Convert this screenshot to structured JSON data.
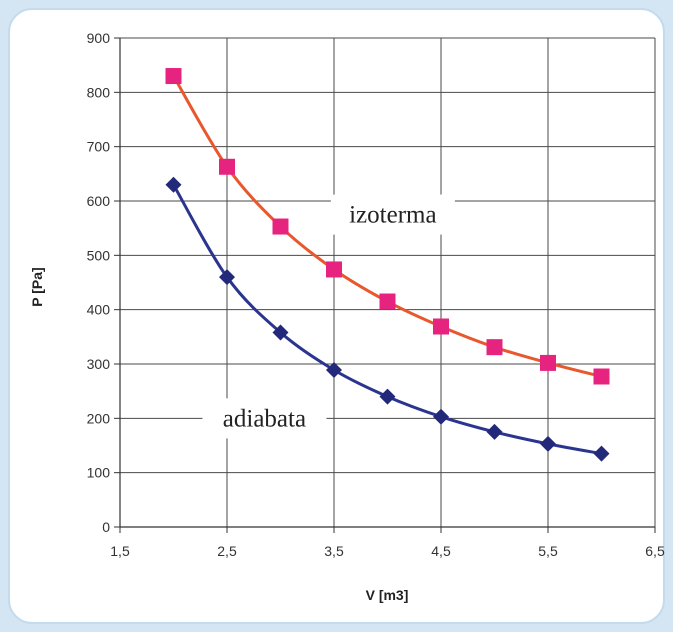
{
  "chart_data": {
    "type": "line",
    "title": "",
    "xlabel": "V [m3]",
    "ylabel": "P [Pa]",
    "xlim": [
      1.5,
      6.5
    ],
    "ylim": [
      0,
      900
    ],
    "x_ticks": [
      "1,5",
      "2,5",
      "3,5",
      "4,5",
      "5,5",
      "6,5"
    ],
    "y_ticks": [
      "0",
      "100",
      "200",
      "300",
      "400",
      "500",
      "600",
      "700",
      "800",
      "900"
    ],
    "grid": true,
    "legend": "none",
    "x": [
      2,
      2.5,
      3,
      3.5,
      4,
      4.5,
      5,
      5.5,
      6
    ],
    "series": [
      {
        "name": "izoterma",
        "color": "#e8572d",
        "marker": "square",
        "marker_color": "#e6247f",
        "values": [
          830,
          663,
          553,
          474,
          415,
          369,
          331,
          302,
          277
        ]
      },
      {
        "name": "adiabata",
        "color": "#2b3590",
        "marker": "diamond",
        "marker_color": "#22297a",
        "values": [
          630,
          460,
          358,
          289,
          240,
          203,
          175,
          153,
          135
        ]
      }
    ]
  }
}
